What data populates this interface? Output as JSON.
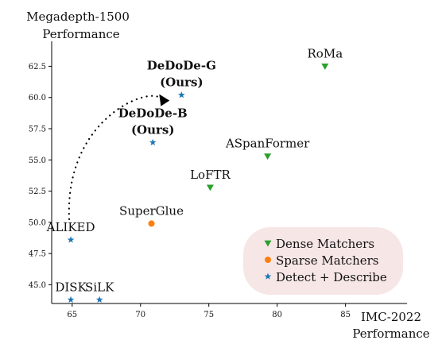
{
  "chart_data": {
    "type": "scatter",
    "title": "",
    "ylabel_line1": "Megadepth-1500",
    "ylabel_line2": "Performance",
    "xlabel_line1": "IMC-2022",
    "xlabel_line2": "Performance",
    "xlim": [
      63.5,
      89.5
    ],
    "ylim": [
      43.5,
      64.5
    ],
    "xticks": [
      65,
      70,
      75,
      80,
      85
    ],
    "xtick_labels": [
      "65",
      "70",
      "75",
      "80",
      "85"
    ],
    "yticks": [
      45.0,
      47.5,
      50.0,
      52.5,
      55.0,
      57.5,
      60.0,
      62.5
    ],
    "ytick_labels": [
      "45.0",
      "47.5",
      "50.0",
      "52.5",
      "55.0",
      "57.5",
      "60.0",
      "62.5"
    ],
    "grid": false,
    "legend_position": "bottom-right",
    "colors": {
      "dense": "#2ca02c",
      "sparse": "#ff7f0e",
      "detect": "#1f77b4",
      "legend_bg": "#f7e6e6"
    },
    "legend": [
      {
        "key": "dense",
        "label": "Dense Matchers",
        "marker": "triangle"
      },
      {
        "key": "sparse",
        "label": "Sparse Matchers",
        "marker": "circle"
      },
      {
        "key": "detect",
        "label": "Detect + Describe",
        "marker": "star"
      }
    ],
    "points": [
      {
        "name": "RoMa",
        "x": 83.5,
        "y": 62.5,
        "group": "dense",
        "label_lines": [
          "RoMa"
        ],
        "bold": false
      },
      {
        "name": "ASpanFormer",
        "x": 79.3,
        "y": 55.3,
        "group": "dense",
        "label_lines": [
          "ASpanFormer"
        ],
        "bold": false
      },
      {
        "name": "LoFTR",
        "x": 75.1,
        "y": 52.8,
        "group": "dense",
        "label_lines": [
          "LoFTR"
        ],
        "bold": false
      },
      {
        "name": "SuperGlue",
        "x": 70.8,
        "y": 49.9,
        "group": "sparse",
        "label_lines": [
          "SuperGlue"
        ],
        "bold": false
      },
      {
        "name": "DeDoDe-G (Ours)",
        "x": 73.0,
        "y": 60.2,
        "group": "detect",
        "label_lines": [
          "DeDoDe-G",
          "(Ours)"
        ],
        "bold": true
      },
      {
        "name": "DeDoDe-B (Ours)",
        "x": 70.9,
        "y": 56.4,
        "group": "detect",
        "label_lines": [
          "DeDoDe-B",
          "(Ours)"
        ],
        "bold": true
      },
      {
        "name": "ALIKED",
        "x": 64.9,
        "y": 48.6,
        "group": "detect",
        "label_lines": [
          "ALIKED"
        ],
        "bold": false
      },
      {
        "name": "DISK",
        "x": 64.9,
        "y": 43.8,
        "group": "detect",
        "label_lines": [
          "DISK"
        ],
        "bold": false
      },
      {
        "name": "SiLK",
        "x": 67.0,
        "y": 43.8,
        "group": "detect",
        "label_lines": [
          "SiLK"
        ],
        "bold": false
      }
    ],
    "annotation_arrow": {
      "from_point": "ALIKED",
      "to_point": "DeDoDe-G (Ours)",
      "style": "dotted"
    }
  }
}
